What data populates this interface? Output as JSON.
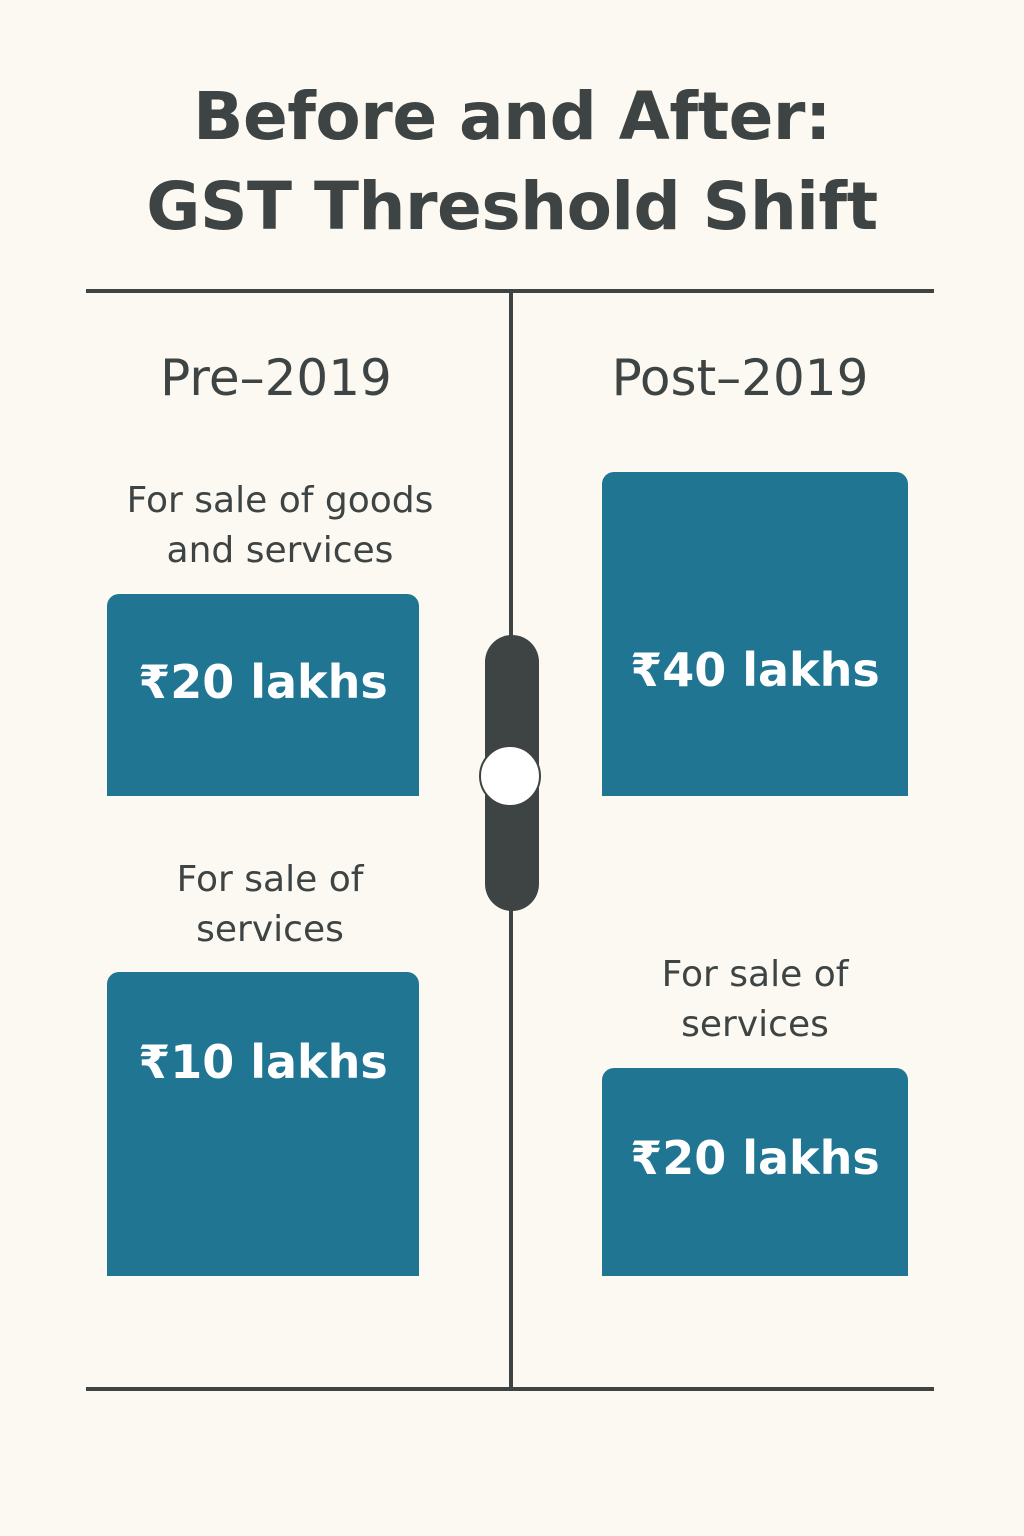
{
  "title": {
    "line1": "Before and After:",
    "line2": "GST Threshold Shift"
  },
  "pre": {
    "heading": "Pre–2019",
    "goods_services_label_line1": "For sale of goods",
    "goods_services_label_line2": "and services",
    "goods_services_amount": "₹20 lakhs",
    "services_label_line1": "For sale of",
    "services_label_line2": "services",
    "services_amount": "₹10 lakhs"
  },
  "post": {
    "heading": "Post–2019",
    "goods_services_amount": "₹40 lakhs",
    "services_label_line1": "For sale of",
    "services_label_line2": "services",
    "services_amount": "₹20 lakhs"
  },
  "colors": {
    "background": "#fbf9f1",
    "text": "#3d4443",
    "box": "#1f7592"
  }
}
